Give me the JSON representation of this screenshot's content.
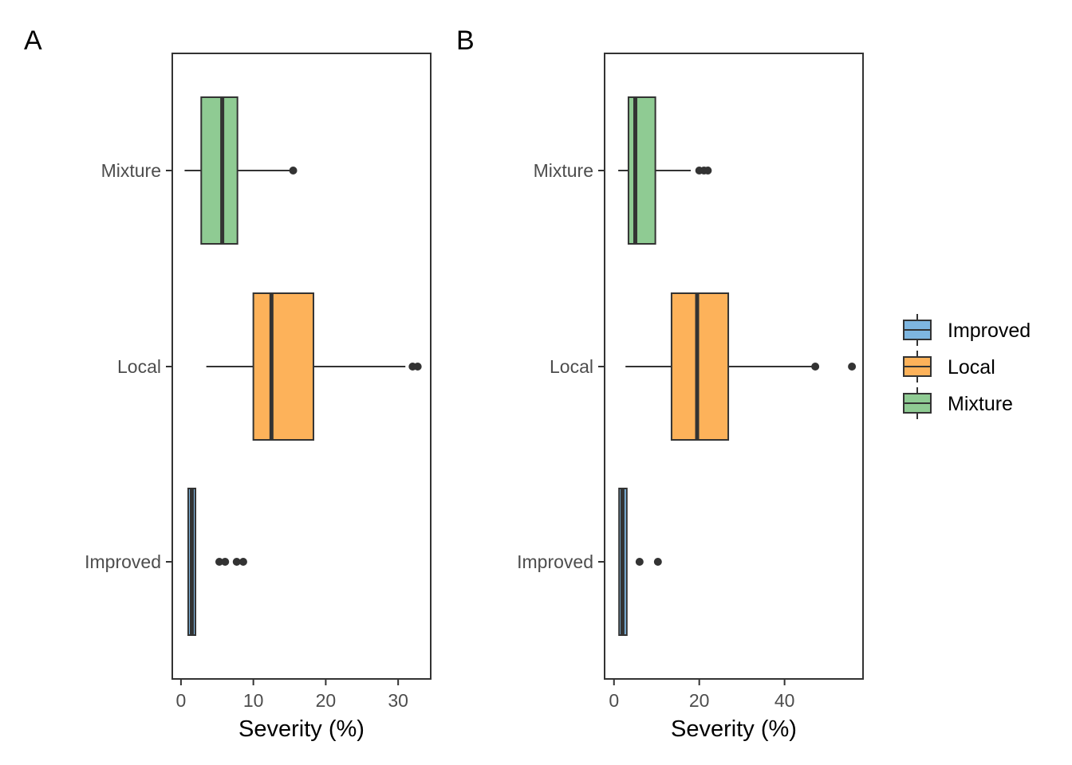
{
  "chart_data": [
    {
      "panel_label": "A",
      "type": "boxplot",
      "orientation": "horizontal",
      "xlabel": "Severity (%)",
      "ylabel": "",
      "xlim": [
        -1.2,
        34.5
      ],
      "xticks": [
        0,
        10,
        20,
        30
      ],
      "categories": [
        "Improved",
        "Local",
        "Mixture"
      ],
      "boxes": [
        {
          "category": "Improved",
          "fill": "#7EB6E0",
          "whisker_low": 1.0,
          "q1": 1.0,
          "median": 1.5,
          "q3": 2.0,
          "whisker_high": 2.0,
          "outliers": [
            5.3,
            6.1,
            7.7,
            8.6
          ]
        },
        {
          "category": "Local",
          "fill": "#FDB25A",
          "whisker_low": 3.5,
          "q1": 10.0,
          "median": 12.5,
          "q3": 18.3,
          "whisker_high": 31.0,
          "outliers": [
            32.0,
            32.7
          ]
        },
        {
          "category": "Mixture",
          "fill": "#8FCB93",
          "whisker_low": 0.5,
          "q1": 2.8,
          "median": 5.7,
          "q3": 7.8,
          "whisker_high": 15.0,
          "outliers": [
            15.5
          ]
        }
      ]
    },
    {
      "panel_label": "B",
      "type": "boxplot",
      "orientation": "horizontal",
      "xlabel": "Severity (%)",
      "ylabel": "",
      "xlim": [
        -2.2,
        58.4
      ],
      "xticks": [
        0,
        20,
        40
      ],
      "categories": [
        "Improved",
        "Local",
        "Mixture"
      ],
      "boxes": [
        {
          "category": "Improved",
          "fill": "#7EB6E0",
          "whisker_low": 1.2,
          "q1": 1.2,
          "median": 2.0,
          "q3": 3.0,
          "whisker_high": 3.0,
          "outliers": [
            6.0,
            10.3
          ]
        },
        {
          "category": "Local",
          "fill": "#FDB25A",
          "whisker_low": 2.7,
          "q1": 13.5,
          "median": 19.5,
          "q3": 26.8,
          "whisker_high": 46.5,
          "outliers": [
            47.2,
            55.8
          ]
        },
        {
          "category": "Mixture",
          "fill": "#8FCB93",
          "whisker_low": 1.0,
          "q1": 3.4,
          "median": 5.0,
          "q3": 9.7,
          "whisker_high": 18.0,
          "outliers": [
            20.0,
            21.1,
            22.0
          ]
        }
      ]
    }
  ],
  "legend": {
    "placement": "right",
    "items": [
      {
        "label": "Improved",
        "fill": "#7EB6E0"
      },
      {
        "label": "Local",
        "fill": "#FDB25A"
      },
      {
        "label": "Mixture",
        "fill": "#8FCB93"
      }
    ]
  },
  "colors": {
    "outline": "#333333",
    "axis_text": "#4D4D4D",
    "frame": "#333333"
  }
}
